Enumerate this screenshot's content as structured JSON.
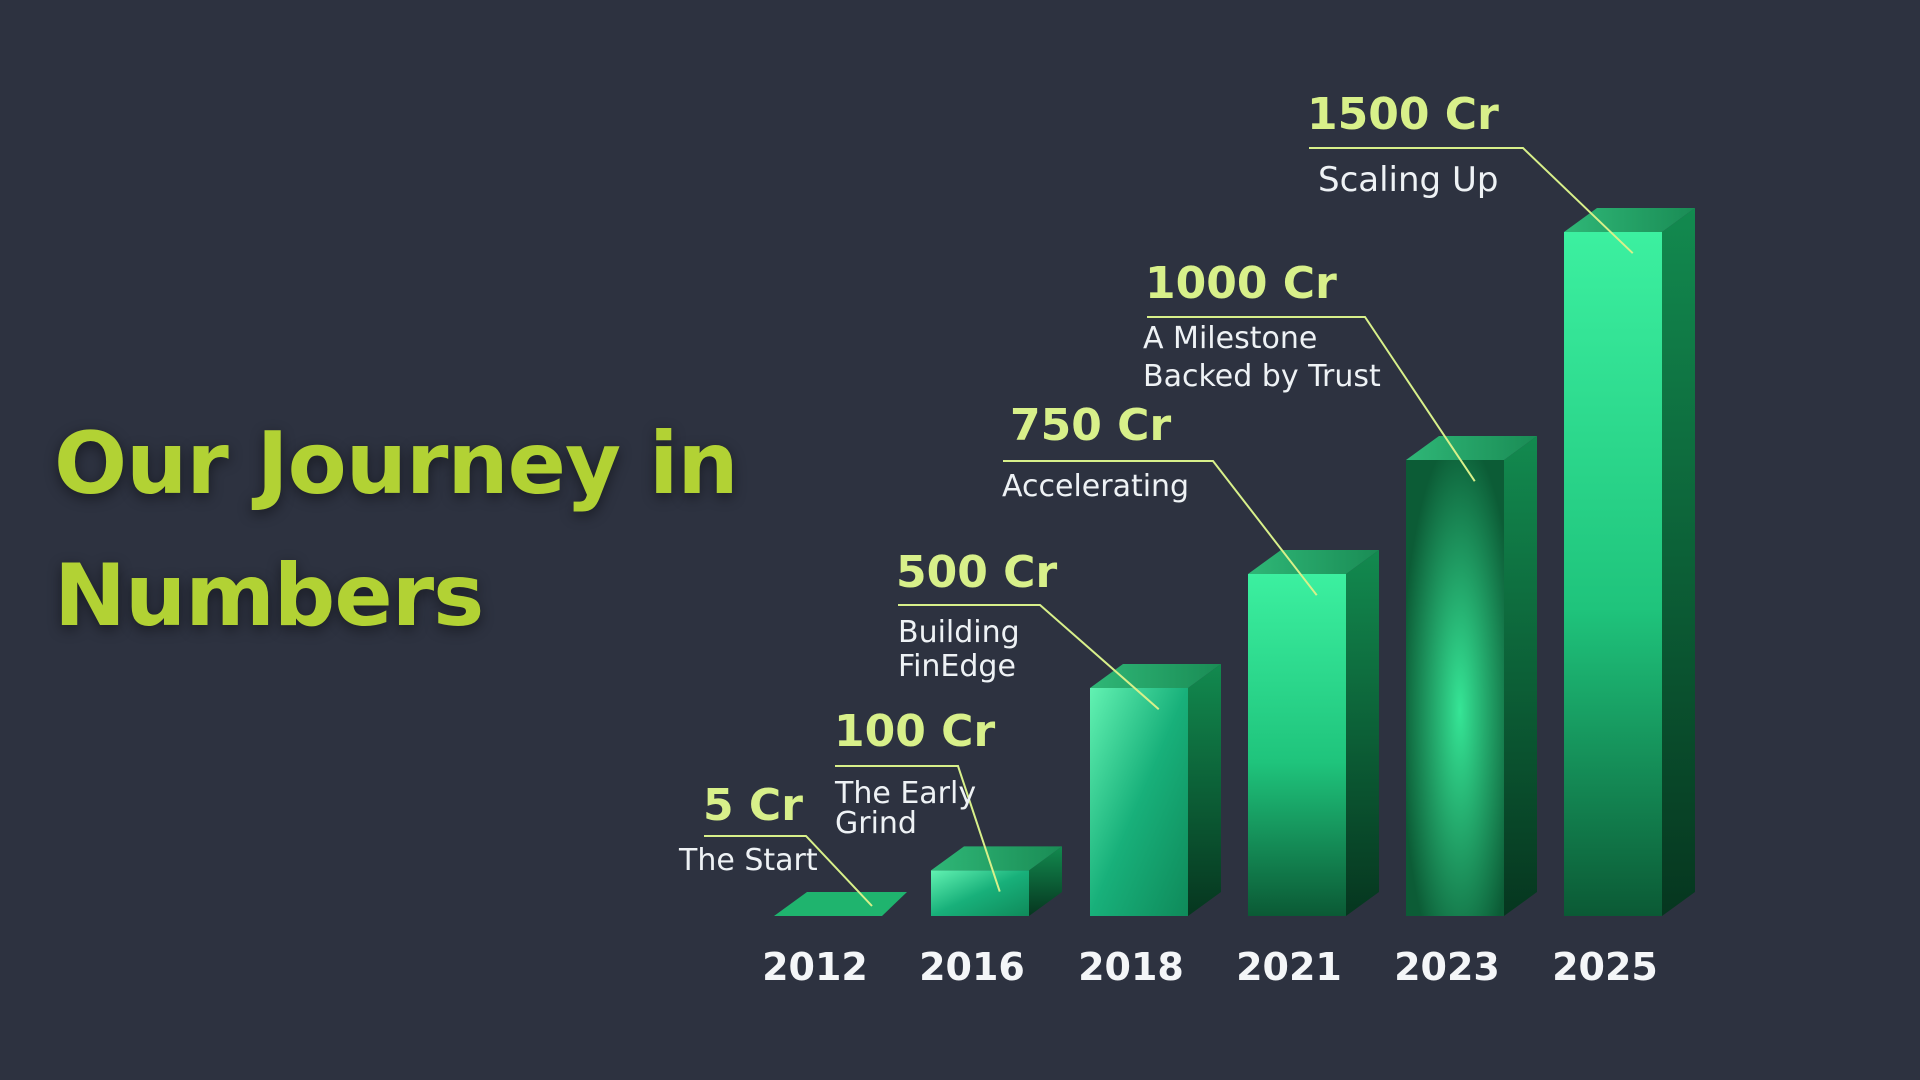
{
  "headline": {
    "line1": "Our Journey in",
    "line2": "Numbers"
  },
  "colors": {
    "background": "#2d3240",
    "headline": "#b2d234",
    "value_label": "#d8f08a",
    "leader_line": "#d8f08a",
    "bar_light": "#3cf0a0",
    "bar_dark": "#0b5a35"
  },
  "chart_data": {
    "type": "bar",
    "style": "3d-columns",
    "categories": [
      "2012",
      "2016",
      "2018",
      "2021",
      "2023",
      "2025"
    ],
    "values": [
      5,
      100,
      500,
      750,
      1000,
      1500
    ],
    "unit": "Cr",
    "value_labels": [
      "5 Cr",
      "100 Cr",
      "500 Cr",
      "750 Cr",
      "1000 Cr",
      "1500 Cr"
    ],
    "captions": [
      [
        "The Start"
      ],
      [
        "The Early",
        "Grind"
      ],
      [
        "Building",
        "FinEdge"
      ],
      [
        "Accelerating"
      ],
      [
        "A Milestone",
        "Backed by Trust"
      ],
      [
        "Scaling Up"
      ]
    ],
    "axes_visible": false,
    "grid": false,
    "legend": "none"
  }
}
